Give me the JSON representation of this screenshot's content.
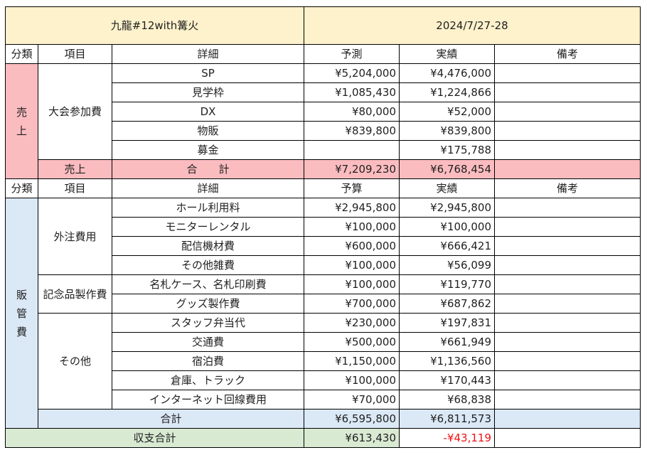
{
  "title": "九龍#12with篝火",
  "date": "2024/7/27-28",
  "sales": {
    "header": {
      "category": "分類",
      "item": "項目",
      "detail": "詳細",
      "forecast": "予測",
      "actual": "実績",
      "note": "備考"
    },
    "category_chars": [
      "売",
      "上"
    ],
    "group": "大会参加費",
    "rows": [
      {
        "detail": "SP",
        "forecast": "¥5,204,000",
        "actual": "¥4,476,000",
        "note": ""
      },
      {
        "detail": "見学枠",
        "forecast": "¥1,085,430",
        "actual": "¥1,224,866",
        "note": ""
      },
      {
        "detail": "DX",
        "forecast": "¥80,000",
        "actual": "¥52,000",
        "note": ""
      },
      {
        "detail": "物販",
        "forecast": "¥839,800",
        "actual": "¥839,800",
        "note": ""
      },
      {
        "detail": "募金",
        "forecast": "",
        "actual": "¥175,788",
        "note": ""
      }
    ],
    "total": {
      "label": "売上",
      "detail": "合　　計",
      "forecast": "¥7,209,230",
      "actual": "¥6,768,454"
    }
  },
  "expenses": {
    "header": {
      "category": "分類",
      "item": "項目",
      "detail": "詳細",
      "budget": "予算",
      "actual": "実績",
      "note": "備考"
    },
    "category_chars": [
      "販",
      "管",
      "費"
    ],
    "groups": [
      {
        "name": "外注費用",
        "rows": [
          {
            "detail": "ホール利用料",
            "budget": "¥2,945,800",
            "actual": "¥2,945,800"
          },
          {
            "detail": "モニターレンタル",
            "budget": "¥100,000",
            "actual": "¥100,000"
          },
          {
            "detail": "配信機材費",
            "budget": "¥600,000",
            "actual": "¥666,421"
          },
          {
            "detail": "その他雑費",
            "budget": "¥100,000",
            "actual": "¥56,099"
          }
        ]
      },
      {
        "name": "記念品製作費",
        "rows": [
          {
            "detail": "名札ケース、名札印刷費",
            "budget": "¥100,000",
            "actual": "¥119,770"
          },
          {
            "detail": "グッズ製作費",
            "budget": "¥700,000",
            "actual": "¥687,862"
          }
        ]
      },
      {
        "name": "その他",
        "rows": [
          {
            "detail": "スタッフ弁当代",
            "budget": "¥230,000",
            "actual": "¥197,831"
          },
          {
            "detail": "交通費",
            "budget": "¥500,000",
            "actual": "¥661,949"
          },
          {
            "detail": "宿泊費",
            "budget": "¥1,150,000",
            "actual": "¥1,136,560"
          },
          {
            "detail": "倉庫、トラック",
            "budget": "¥100,000",
            "actual": "¥170,443"
          },
          {
            "detail": "インターネット回線費用",
            "budget": "¥70,000",
            "actual": "¥68,838"
          }
        ]
      }
    ],
    "total": {
      "label": "合計",
      "budget": "¥6,595,800",
      "actual": "¥6,811,573"
    }
  },
  "balance": {
    "label": "収支合計",
    "forecast": "¥613,430",
    "actual": "-¥43,119",
    "actual_color": "#ee1111"
  },
  "colors": {
    "title_bg": "#fef2cc",
    "sales_bg": "#fbbcc0",
    "expense_bg": "#dbe8f6",
    "balance_bg": "#d9ead3"
  }
}
